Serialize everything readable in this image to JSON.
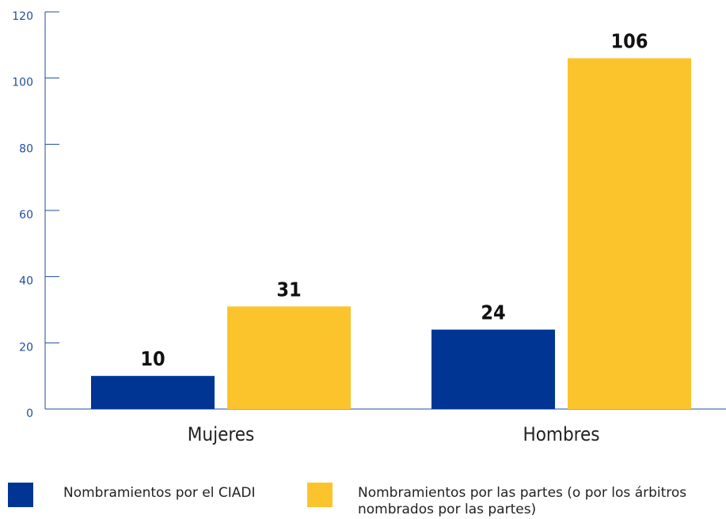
{
  "chart_data": {
    "type": "bar",
    "categories": [
      "Mujeres",
      "Hombres"
    ],
    "series": [
      {
        "name": "Nombramientos por el CIADI",
        "color": "#003594",
        "values": [
          10,
          24
        ]
      },
      {
        "name": "Nombramientos por las partes (o por los árbitros nombrados por las partes)",
        "color": "#fcc42c",
        "values": [
          31,
          106
        ]
      }
    ],
    "ylim": [
      0,
      120
    ],
    "yticks": [
      0,
      20,
      40,
      60,
      80,
      100,
      120
    ]
  }
}
